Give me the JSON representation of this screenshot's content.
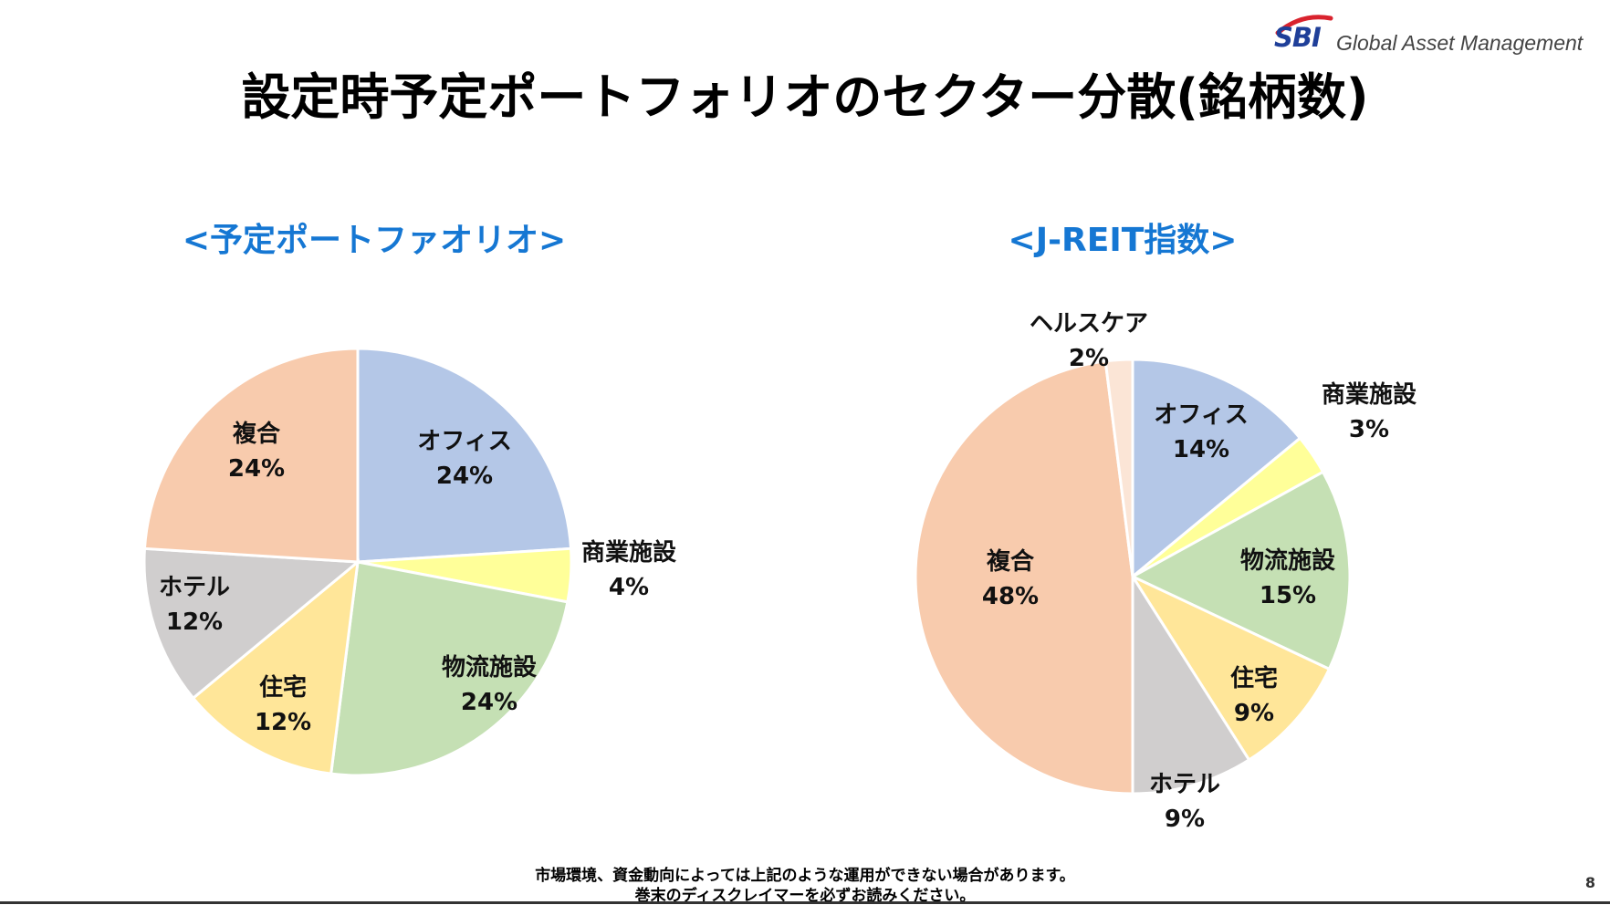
{
  "header": {
    "logo_mark": "SBI",
    "logo_text": "Global Asset Management",
    "title": "設定時予定ポートフォリオのセクター分散(銘柄数)"
  },
  "colors": {
    "office": "#b4c7e7",
    "retail": "#ffff99",
    "logistics": "#c5e0b4",
    "residential": "#ffe699",
    "hotel": "#d0cece",
    "complex": "#f8cbad",
    "healthcare": "#fbe5d6",
    "chart_title": "#1577d3",
    "logo_blue": "#1f3f99",
    "logo_red": "#d9232e"
  },
  "chart_data": [
    {
      "type": "pie",
      "title": "<予定ポートファオリオ>",
      "slices": [
        {
          "label": "オフィス",
          "value": 24,
          "value_label": "24%",
          "color_key": "office"
        },
        {
          "label": "商業施設",
          "value": 4,
          "value_label": "4%",
          "color_key": "retail"
        },
        {
          "label": "物流施設",
          "value": 24,
          "value_label": "24%",
          "color_key": "logistics"
        },
        {
          "label": "住宅",
          "value": 12,
          "value_label": "12%",
          "color_key": "residential"
        },
        {
          "label": "ホテル",
          "value": 12,
          "value_label": "12%",
          "color_key": "hotel"
        },
        {
          "label": "複合",
          "value": 24,
          "value_label": "24%",
          "color_key": "complex"
        }
      ]
    },
    {
      "type": "pie",
      "title": "<J-REIT指数>",
      "slices": [
        {
          "label": "オフィス",
          "value": 14,
          "value_label": "14%",
          "color_key": "office"
        },
        {
          "label": "商業施設",
          "value": 3,
          "value_label": "3%",
          "color_key": "retail"
        },
        {
          "label": "物流施設",
          "value": 15,
          "value_label": "15%",
          "color_key": "logistics"
        },
        {
          "label": "住宅",
          "value": 9,
          "value_label": "9%",
          "color_key": "residential"
        },
        {
          "label": "ホテル",
          "value": 9,
          "value_label": "9%",
          "color_key": "hotel"
        },
        {
          "label": "複合",
          "value": 48,
          "value_label": "48%",
          "color_key": "complex"
        },
        {
          "label": "ヘルスケア",
          "value": 2,
          "value_label": "2%",
          "color_key": "healthcare"
        }
      ]
    }
  ],
  "footer": {
    "note_line1": "市場環境、資金動向によっては上記のような運用ができない場合があります。",
    "note_line2": "巻末のディスクレイマーを必ずお読みください。",
    "page_number": "8"
  }
}
